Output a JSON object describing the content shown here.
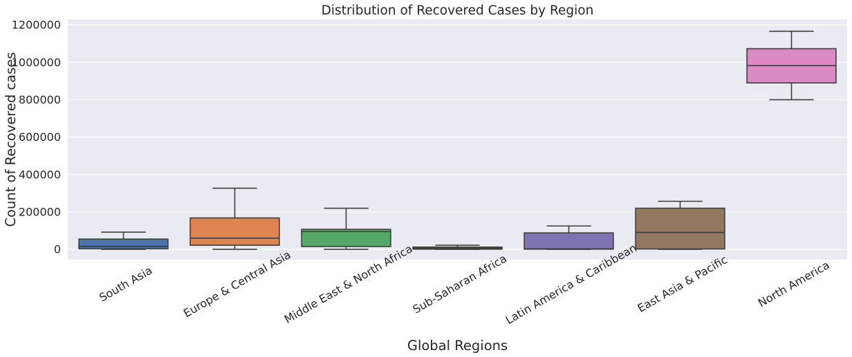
{
  "chart_data": {
    "type": "box",
    "title": "Distribution of Recovered Cases by Region",
    "xlabel": "Global Regions",
    "ylabel": "Count of Recovered cases",
    "ylim": [
      -55000,
      1230000
    ],
    "yticks": [
      0,
      200000,
      400000,
      600000,
      800000,
      1000000,
      1200000
    ],
    "ytick_labels": [
      "0",
      "200000",
      "400000",
      "600000",
      "800000",
      "1000000",
      "1200000"
    ],
    "grid": true,
    "categories": [
      "South Asia",
      "Europe & Central Asia",
      "Middle East & North Africa",
      "Sub-Saharan Africa",
      "Latin America & Caribbean",
      "East Asia & Pacific",
      "North America"
    ],
    "boxes": [
      {
        "category": "South Asia",
        "whisker_low": 0,
        "q1": 3000,
        "median": 16000,
        "q3": 55000,
        "whisker_high": 92000
      },
      {
        "category": "Europe & Central Asia",
        "whisker_low": 0,
        "q1": 22000,
        "median": 60000,
        "q3": 168000,
        "whisker_high": 327000
      },
      {
        "category": "Middle East & North Africa",
        "whisker_low": 0,
        "q1": 15000,
        "median": 95000,
        "q3": 107000,
        "whisker_high": 220000
      },
      {
        "category": "Sub-Saharan Africa",
        "whisker_low": 0,
        "q1": 1000,
        "median": 6000,
        "q3": 12000,
        "whisker_high": 22000
      },
      {
        "category": "Latin America & Caribbean",
        "whisker_low": 0,
        "q1": 1000,
        "median": 3000,
        "q3": 88000,
        "whisker_high": 125000
      },
      {
        "category": "East Asia & Pacific",
        "whisker_low": 0,
        "q1": 2000,
        "median": 90000,
        "q3": 220000,
        "whisker_high": 257000
      },
      {
        "category": "North America",
        "whisker_low": 800000,
        "q1": 890000,
        "median": 983000,
        "q3": 1073000,
        "whisker_high": 1166000
      }
    ],
    "colors": [
      "#4c72b0",
      "#dd8452",
      "#55a868",
      "#c44e52",
      "#8172b3",
      "#937860",
      "#da8bc3"
    ],
    "background": "#eaeaf2",
    "grid_color": "#ffffff",
    "line_color": "#3d3d3d"
  }
}
